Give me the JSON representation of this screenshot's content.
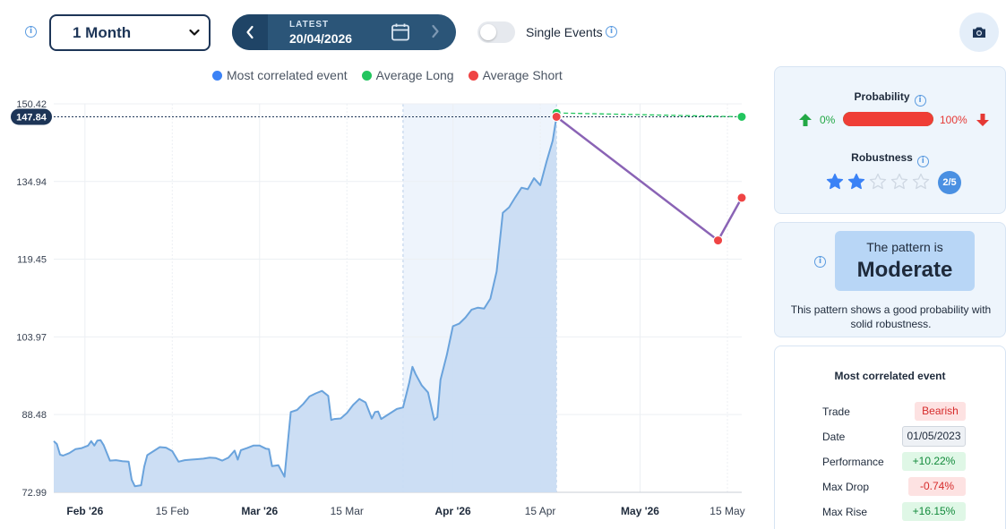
{
  "toolbar": {
    "period_value": "1 Month",
    "date_label": "LATEST",
    "date_value": "20/04/2026",
    "single_events_label": "Single Events",
    "single_events_on": false
  },
  "legend": [
    {
      "label": "Most correlated event",
      "color": "#3b82f6"
    },
    {
      "label": "Average Long",
      "color": "#22c55e"
    },
    {
      "label": "Average Short",
      "color": "#ef4444"
    }
  ],
  "chart_data": {
    "type": "area",
    "y_ticks": [
      "150.42",
      "134.94",
      "119.45",
      "103.97",
      "88.48",
      "72.99"
    ],
    "ylim": [
      72.99,
      150.42
    ],
    "x_ticks": [
      {
        "label": "Feb '26",
        "bold": true,
        "x": 5
      },
      {
        "label": "15 Feb",
        "bold": false,
        "x": 19
      },
      {
        "label": "Mar '26",
        "bold": true,
        "x": 33
      },
      {
        "label": "15 Mar",
        "bold": false,
        "x": 47
      },
      {
        "label": "Apr '26",
        "bold": true,
        "x": 64
      },
      {
        "label": "15 Apr",
        "bold": false,
        "x": 78
      },
      {
        "label": "May '26",
        "bold": true,
        "x": 94
      },
      {
        "label": "15 May",
        "bold": false,
        "x": 108
      }
    ],
    "xlim": [
      0,
      110.3
    ],
    "current_value": "147.84",
    "highlight_range": [
      56,
      80.6
    ],
    "series": [
      {
        "name": "Most correlated event",
        "color": "#6aa3dc",
        "fill": "#c9dcf3",
        "points": [
          [
            0,
            83.2
          ],
          [
            0.5,
            82.6
          ],
          [
            1,
            80.5
          ],
          [
            1.5,
            80.3
          ],
          [
            2.5,
            80.8
          ],
          [
            3.5,
            81.6
          ],
          [
            4.5,
            81.8
          ],
          [
            5.5,
            82.3
          ],
          [
            6,
            83.2
          ],
          [
            6.5,
            82.3
          ],
          [
            7,
            83.3
          ],
          [
            7.5,
            83.4
          ],
          [
            8,
            82.4
          ],
          [
            9,
            79.3
          ],
          [
            10,
            79.4
          ],
          [
            11,
            79.2
          ],
          [
            12,
            79.1
          ],
          [
            12.5,
            75.5
          ],
          [
            13,
            74.2
          ],
          [
            14,
            74.4
          ],
          [
            14.5,
            78.1
          ],
          [
            15,
            80.4
          ],
          [
            16,
            81.2
          ],
          [
            17,
            82.0
          ],
          [
            18,
            81.9
          ],
          [
            19,
            81.2
          ],
          [
            20,
            79.1
          ],
          [
            21,
            79.4
          ],
          [
            22,
            79.5
          ],
          [
            23,
            79.6
          ],
          [
            24,
            79.7
          ],
          [
            25,
            79.9
          ],
          [
            26,
            79.8
          ],
          [
            27,
            79.3
          ],
          [
            28,
            79.9
          ],
          [
            29,
            81.3
          ],
          [
            29.5,
            79.5
          ],
          [
            30,
            81.4
          ],
          [
            31,
            81.8
          ],
          [
            32,
            82.3
          ],
          [
            33,
            82.3
          ],
          [
            34,
            81.7
          ],
          [
            34.5,
            81.6
          ],
          [
            35,
            78.2
          ],
          [
            36,
            78.4
          ],
          [
            37,
            76.1
          ],
          [
            38,
            89.0
          ],
          [
            39,
            89.4
          ],
          [
            40,
            90.6
          ],
          [
            41,
            92.1
          ],
          [
            42,
            92.7
          ],
          [
            43,
            93.2
          ],
          [
            44,
            92.2
          ],
          [
            44.5,
            87.4
          ],
          [
            45,
            87.6
          ],
          [
            46,
            87.7
          ],
          [
            47,
            88.8
          ],
          [
            48,
            90.4
          ],
          [
            49,
            91.6
          ],
          [
            50,
            90.9
          ],
          [
            51,
            87.7
          ],
          [
            51.5,
            89.0
          ],
          [
            52,
            89.1
          ],
          [
            52.5,
            87.6
          ],
          [
            53,
            88.0
          ],
          [
            54,
            88.8
          ],
          [
            55,
            89.6
          ],
          [
            56,
            89.9
          ],
          [
            57,
            94.9
          ],
          [
            57.5,
            98.0
          ],
          [
            58,
            96.6
          ],
          [
            59,
            94.3
          ],
          [
            60,
            92.9
          ],
          [
            61,
            87.4
          ],
          [
            61.5,
            88.0
          ],
          [
            62,
            95.4
          ],
          [
            63,
            100.3
          ],
          [
            64,
            106.1
          ],
          [
            65,
            106.6
          ],
          [
            66,
            107.8
          ],
          [
            67,
            109.4
          ],
          [
            68,
            109.8
          ],
          [
            69,
            109.6
          ],
          [
            70,
            111.6
          ],
          [
            71,
            117.0
          ],
          [
            72,
            128.7
          ],
          [
            73,
            129.8
          ],
          [
            74,
            131.8
          ],
          [
            75,
            133.7
          ],
          [
            76,
            133.4
          ],
          [
            77,
            135.6
          ],
          [
            78,
            134.2
          ],
          [
            79,
            138.9
          ],
          [
            80,
            143.1
          ],
          [
            80.6,
            147.84
          ]
        ]
      }
    ],
    "projections": [
      {
        "name": "Average Long",
        "color": "#22c55e",
        "points": [
          [
            80.6,
            148.6
          ],
          [
            110.3,
            147.84
          ]
        ]
      },
      {
        "name": "Average Short",
        "color": "#ef4444",
        "points": [
          [
            80.6,
            147.84
          ],
          [
            106.5,
            123.2
          ],
          [
            110.3,
            131.7
          ]
        ]
      }
    ]
  },
  "probability": {
    "title": "Probability",
    "long_value": "0%",
    "short_value": "100%",
    "short_fraction": 1.0
  },
  "robustness": {
    "title": "Robustness",
    "score": 2,
    "max": 5,
    "badge": "2/5"
  },
  "pattern": {
    "prefix": "The pattern is",
    "level": "Moderate",
    "description": "This pattern shows a good probability with solid robustness."
  },
  "event": {
    "title": "Most correlated event",
    "rows": [
      {
        "label": "Trade",
        "value": "Bearish",
        "style": "red"
      },
      {
        "label": "Date",
        "value": "01/05/2023",
        "style": "gray"
      },
      {
        "label": "Performance",
        "value": "+10.22%",
        "style": "green"
      },
      {
        "label": "Max Drop",
        "value": "-0.74%",
        "style": "red"
      },
      {
        "label": "Max Rise",
        "value": "+16.15%",
        "style": "green"
      }
    ]
  }
}
